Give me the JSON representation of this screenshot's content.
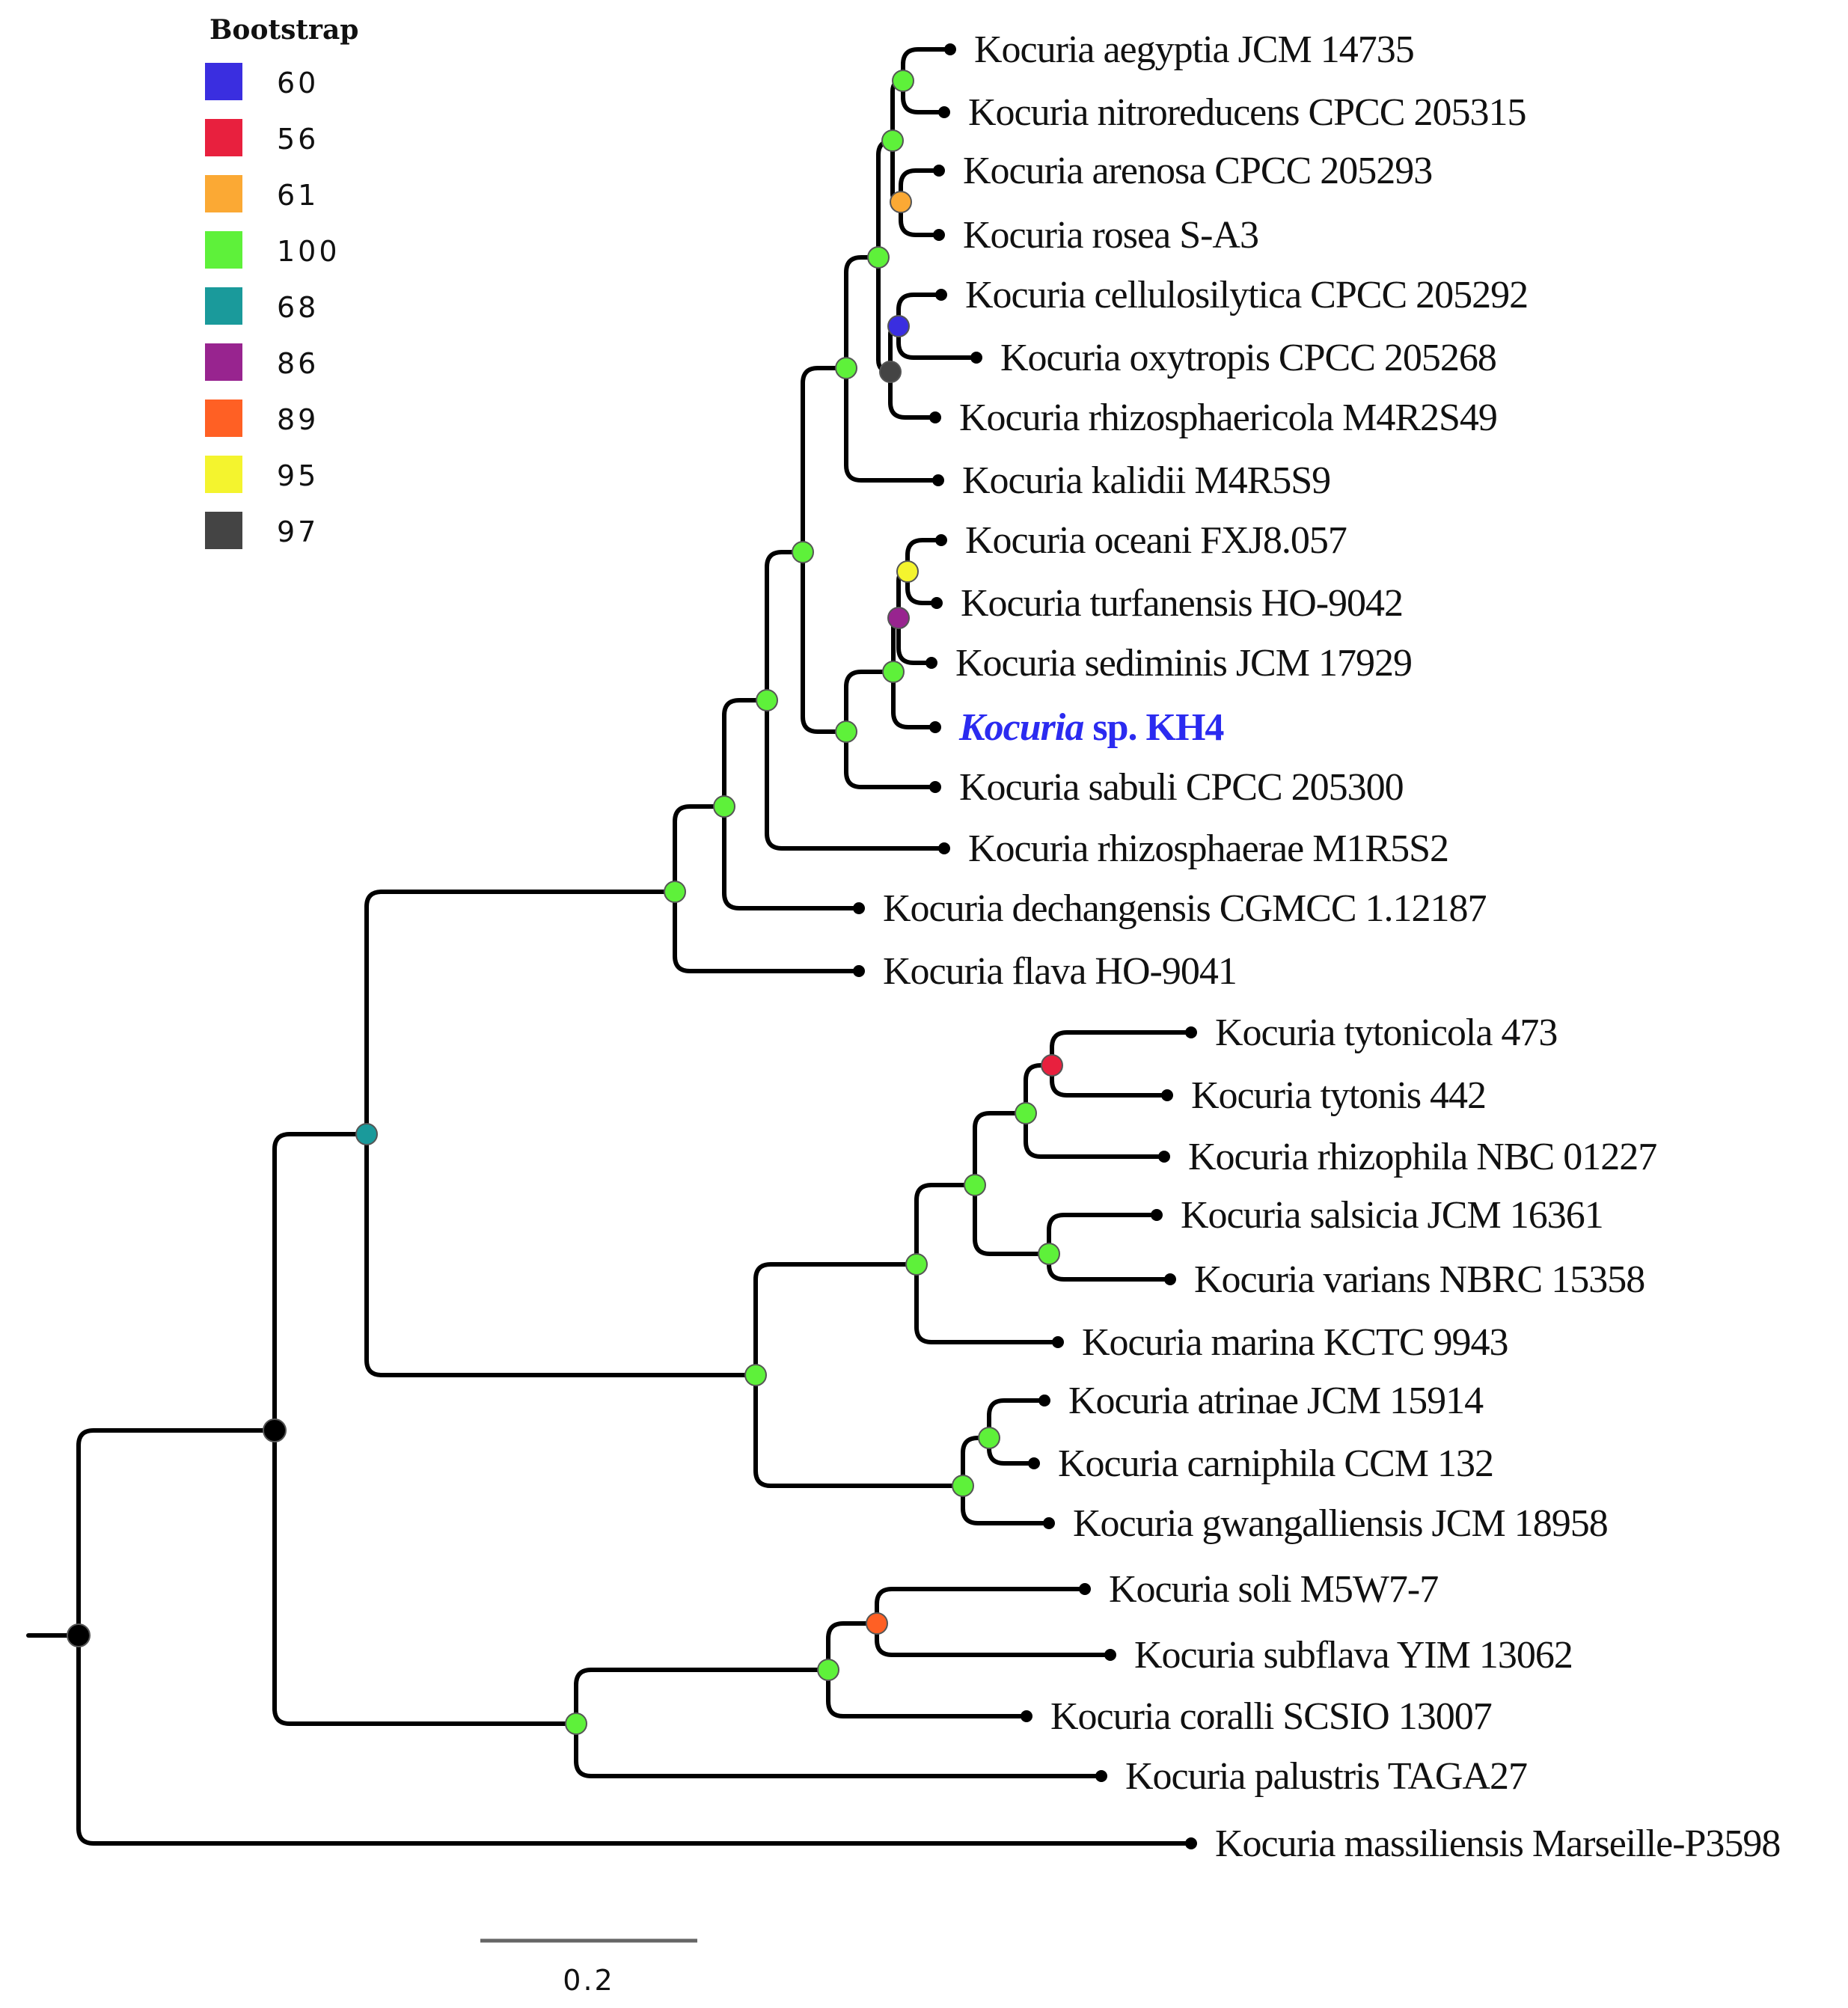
{
  "legend": {
    "title": "Bootstrap",
    "items": [
      {
        "value": "60",
        "color": "#3a2ee0"
      },
      {
        "value": "56",
        "color": "#e8203e"
      },
      {
        "value": "61",
        "color": "#fba934"
      },
      {
        "value": "100",
        "color": "#5ef13a"
      },
      {
        "value": "68",
        "color": "#1a9a9b"
      },
      {
        "value": "86",
        "color": "#98248f"
      },
      {
        "value": "89",
        "color": "#ff6024"
      },
      {
        "value": "95",
        "color": "#f4f42e"
      },
      {
        "value": "97",
        "color": "#444444"
      }
    ]
  },
  "taxa": [
    {
      "id": "aegyptia",
      "label": "Kocuria aegyptia JCM 14735"
    },
    {
      "id": "nitroreducens",
      "label": "Kocuria nitroreducens CPCC 205315"
    },
    {
      "id": "arenosa",
      "label": "Kocuria arenosa CPCC 205293"
    },
    {
      "id": "rosea",
      "label": "Kocuria rosea S-A3"
    },
    {
      "id": "cellulosilytica",
      "label": "Kocuria cellulosilytica CPCC 205292"
    },
    {
      "id": "oxytropis",
      "label": "Kocuria oxytropis CPCC 205268"
    },
    {
      "id": "rhizosphaericola",
      "label": "Kocuria rhizosphaericola M4R2S49"
    },
    {
      "id": "kalidii",
      "label": "Kocuria kalidii M4R5S9"
    },
    {
      "id": "oceani",
      "label": "Kocuria oceani FXJ8.057"
    },
    {
      "id": "turfanensis",
      "label": "Kocuria turfanensis HO-9042"
    },
    {
      "id": "sediminis",
      "label": "Kocuria sediminis JCM 17929"
    },
    {
      "id": "kh4",
      "label": "Kocuria sp. KH4",
      "genus": "Kocuria",
      "rest": " sp. KH4",
      "highlight": true
    },
    {
      "id": "sabuli",
      "label": "Kocuria sabuli CPCC 205300"
    },
    {
      "id": "rhizosphaerae",
      "label": "Kocuria rhizosphaerae M1R5S2"
    },
    {
      "id": "dechangensis",
      "label": "Kocuria dechangensis CGMCC 1.12187"
    },
    {
      "id": "flava",
      "label": "Kocuria flava HO-9041"
    },
    {
      "id": "tytonicola",
      "label": "Kocuria tytonicola 473"
    },
    {
      "id": "tytonis",
      "label": "Kocuria tytonis 442"
    },
    {
      "id": "rhizophila",
      "label": "Kocuria rhizophila NBC 01227"
    },
    {
      "id": "salsicia",
      "label": "Kocuria salsicia JCM 16361"
    },
    {
      "id": "varians",
      "label": "Kocuria varians NBRC 15358"
    },
    {
      "id": "marina",
      "label": "Kocuria marina KCTC 9943"
    },
    {
      "id": "atrinae",
      "label": "Kocuria atrinae JCM 15914"
    },
    {
      "id": "carniphila",
      "label": "Kocuria carniphila CCM 132"
    },
    {
      "id": "gwangalliensis",
      "label": "Kocuria gwangalliensis JCM 18958"
    },
    {
      "id": "soli",
      "label": "Kocuria soli M5W7-7"
    },
    {
      "id": "subflava",
      "label": "Kocuria subflava YIM 13062"
    },
    {
      "id": "coralli",
      "label": "Kocuria coralli SCSIO 13007"
    },
    {
      "id": "palustris",
      "label": "Kocuria palustris TAGA27"
    },
    {
      "id": "massiliensis",
      "label": "Kocuria massiliensis Marseille-P3598"
    }
  ],
  "nodes": [
    {
      "id": "root",
      "support": null
    },
    {
      "id": "ingroup",
      "support": null
    },
    {
      "id": "clade-upper",
      "support": "68"
    },
    {
      "id": "clade-a",
      "support": "100"
    },
    {
      "id": "clade-a1",
      "support": "100"
    },
    {
      "id": "clade-a2",
      "support": "100"
    },
    {
      "id": "clade-a3",
      "support": "100"
    },
    {
      "id": "clade-a4",
      "support": "100"
    },
    {
      "id": "clade-a5",
      "support": "100"
    },
    {
      "id": "clade-a6",
      "support": "100"
    },
    {
      "id": "aeg-nit",
      "support": "100"
    },
    {
      "id": "are-ros",
      "support": "61"
    },
    {
      "id": "cel-oxy-rhz",
      "support": "97"
    },
    {
      "id": "cel-oxy",
      "support": "60"
    },
    {
      "id": "kh4-group",
      "support": "100"
    },
    {
      "id": "sed-kh4",
      "support": "100"
    },
    {
      "id": "oce-tur-sed",
      "support": "86"
    },
    {
      "id": "oce-tur",
      "support": "95"
    },
    {
      "id": "clade-b",
      "support": "100"
    },
    {
      "id": "clade-b1",
      "support": "100"
    },
    {
      "id": "clade-b2",
      "support": "100"
    },
    {
      "id": "clade-b3",
      "support": "100"
    },
    {
      "id": "tyt-pair",
      "support": "56"
    },
    {
      "id": "sal-var",
      "support": "100"
    },
    {
      "id": "clade-b4",
      "support": "100"
    },
    {
      "id": "atr-car",
      "support": "100"
    },
    {
      "id": "clade-c",
      "support": "100"
    },
    {
      "id": "clade-c1",
      "support": "100"
    },
    {
      "id": "sol-sub",
      "support": "89"
    }
  ],
  "scale_bar": {
    "label": "0.2",
    "length": 0.2
  }
}
